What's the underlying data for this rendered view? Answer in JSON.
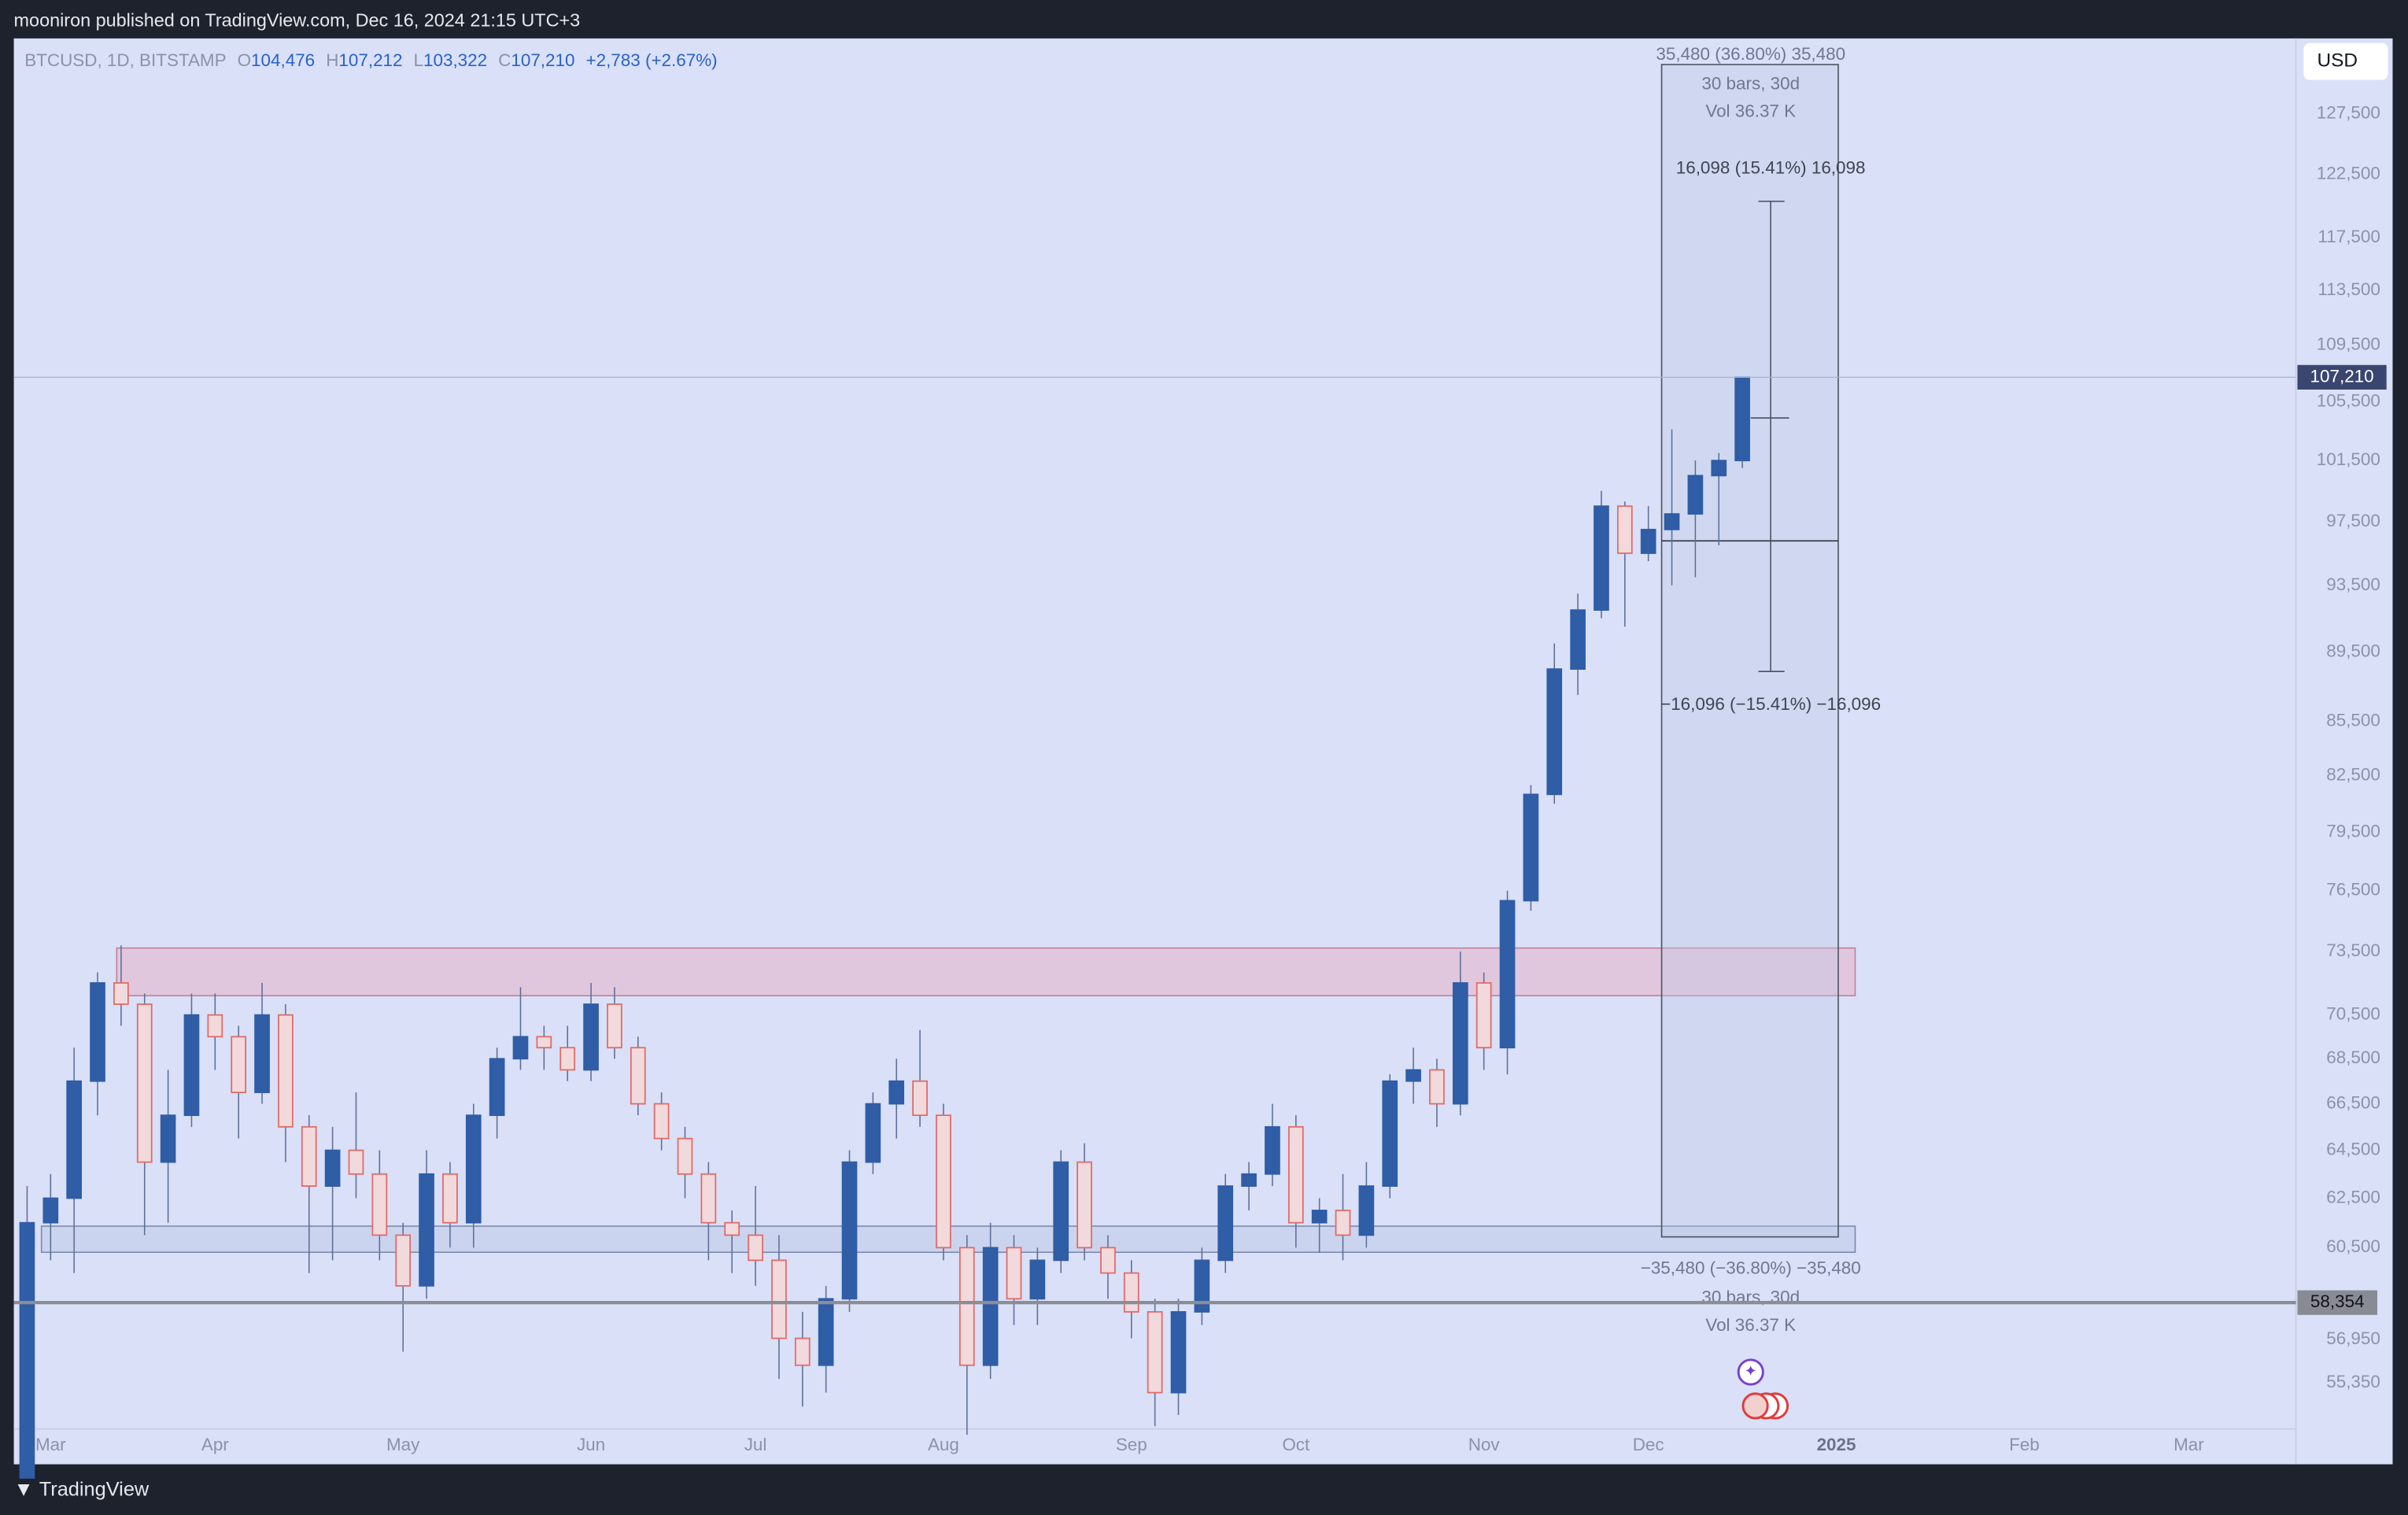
{
  "header": {
    "published": "mooniron published on TradingView.com, Dec 16, 2024 21:15 UTC+3"
  },
  "symbol_legend": {
    "symbol": "BTCUSD, 1D, BITSTAMP",
    "o_key": "O",
    "open": "104,476",
    "h_key": "H",
    "high": "107,212",
    "l_key": "L",
    "low": "103,322",
    "c_key": "C",
    "close": "107,210",
    "change": "+2,783 (+2.67%)"
  },
  "currency": "USD",
  "annotations": {
    "range_top": "35,480 (36.80%) 35,480",
    "bars_top": "30 bars, 30d",
    "vol_top": "Vol 36.37 K",
    "up_move": "16,098 (15.41%) 16,098",
    "down_move": "−16,096 (−15.41%) −16,096",
    "range_bottom": "−35,480 (−36.80%) −35,480",
    "bars_bottom": "30 bars, 30d",
    "vol_bottom": "Vol 36.37 K"
  },
  "footer": {
    "brand": "TradingView"
  },
  "chart_data": {
    "type": "candlestick",
    "log_scale": true,
    "up_color": "#2f5da6",
    "down_color": "#e06a66",
    "categories": [
      null,
      "Mar",
      null,
      null,
      null,
      null,
      null,
      null,
      "Apr",
      null,
      null,
      null,
      null,
      null,
      null,
      null,
      "May",
      null,
      null,
      null,
      null,
      null,
      null,
      null,
      "Jun",
      null,
      null,
      null,
      null,
      null,
      null,
      "Jul",
      null,
      null,
      null,
      null,
      null,
      null,
      null,
      "Aug",
      null,
      null,
      null,
      null,
      null,
      null,
      null,
      "Sep",
      null,
      null,
      null,
      null,
      null,
      null,
      "Oct",
      null,
      null,
      null,
      null,
      null,
      null,
      null,
      "Nov",
      null,
      null,
      null,
      null,
      null,
      null,
      "Dec",
      null,
      null,
      null,
      null,
      null,
      null,
      null,
      "2025",
      null,
      null,
      null,
      null,
      null,
      null,
      null,
      "Feb",
      null,
      null,
      null,
      null,
      null,
      null,
      "Mar",
      null,
      null,
      null,
      null
    ],
    "open": [
      52000,
      61500,
      62500,
      67500,
      72000,
      71000,
      64000,
      66000,
      70500,
      69500,
      67000,
      70500,
      65500,
      63000,
      64500,
      63500,
      61000,
      59000,
      63500,
      61500,
      66000,
      68500,
      69500,
      69000,
      68000,
      71000,
      69000,
      66500,
      65000,
      63500,
      61500,
      61000,
      60000,
      57000,
      56000,
      58500,
      64000,
      66500,
      67500,
      66000,
      60500,
      56000,
      60500,
      58500,
      60000,
      64000,
      60500,
      59500,
      58000,
      55000,
      58000,
      60000,
      63000,
      63500,
      65500,
      61500,
      62000,
      61000,
      63000,
      67500,
      68000,
      66500,
      72000,
      69000,
      76000,
      81500,
      88500,
      92000,
      98500,
      95500,
      97000,
      98000,
      100500,
      101500,
      null,
      null,
      null,
      null,
      null,
      null,
      null,
      null,
      null,
      null,
      null,
      null,
      null,
      null,
      null,
      null,
      null,
      null,
      null,
      null,
      null,
      null,
      null
    ],
    "high": [
      63000,
      63500,
      69000,
      72500,
      73800,
      71500,
      68000,
      71500,
      71500,
      70000,
      72000,
      71000,
      66000,
      65500,
      67000,
      64500,
      61500,
      64500,
      64000,
      66500,
      69000,
      71800,
      70000,
      70000,
      72000,
      71800,
      69500,
      67000,
      65500,
      64000,
      62000,
      63000,
      61000,
      58000,
      59000,
      64500,
      67000,
      68500,
      69800,
      66500,
      61000,
      61500,
      61000,
      60500,
      64500,
      64800,
      61000,
      60000,
      58500,
      58500,
      60500,
      63500,
      64000,
      66500,
      66000,
      62500,
      63500,
      64000,
      67800,
      69000,
      68500,
      73500,
      72500,
      76500,
      82000,
      90000,
      93000,
      99500,
      98800,
      98500,
      103600,
      101500,
      102000,
      107212,
      null,
      null,
      null,
      null,
      null,
      null,
      null,
      null,
      null,
      null,
      null,
      null,
      null,
      null,
      null,
      null,
      null,
      null,
      null,
      null,
      null,
      null,
      null
    ],
    "low": [
      52500,
      60000,
      59500,
      66000,
      70000,
      61000,
      61500,
      65500,
      68000,
      65000,
      66500,
      64000,
      59500,
      60000,
      62500,
      60000,
      56500,
      58500,
      60500,
      60500,
      65000,
      68000,
      68000,
      67500,
      67500,
      68500,
      66000,
      64500,
      62500,
      60000,
      59500,
      59000,
      55500,
      54500,
      55000,
      58000,
      63500,
      65000,
      65500,
      60000,
      53500,
      55500,
      57500,
      57500,
      59500,
      60000,
      58500,
      57000,
      53800,
      54200,
      57500,
      59500,
      62000,
      63000,
      60500,
      60300,
      60000,
      60500,
      62500,
      66500,
      65500,
      66000,
      68000,
      67800,
      75500,
      81000,
      87000,
      91500,
      91000,
      95000,
      93500,
      94000,
      96000,
      101000,
      null,
      null,
      null,
      null,
      null,
      null,
      null,
      null,
      null,
      null,
      null,
      null,
      null,
      null,
      null,
      null,
      null,
      null,
      null,
      null,
      null,
      null,
      null
    ],
    "close": [
      61500,
      62500,
      67500,
      72000,
      71000,
      64000,
      66000,
      70500,
      69500,
      67000,
      70500,
      65500,
      63000,
      64500,
      63500,
      61000,
      59000,
      63500,
      61500,
      66000,
      68500,
      69500,
      69000,
      68000,
      71000,
      69000,
      66500,
      65000,
      63500,
      61500,
      61000,
      60000,
      57000,
      56000,
      58500,
      64000,
      66500,
      67500,
      66000,
      60500,
      56000,
      60500,
      58500,
      60000,
      64000,
      60500,
      59500,
      58000,
      55000,
      58000,
      60000,
      63000,
      63500,
      65500,
      61500,
      62000,
      61000,
      63000,
      67500,
      68000,
      66500,
      72000,
      69000,
      76000,
      81500,
      88500,
      92000,
      98500,
      95500,
      97000,
      98000,
      100500,
      101500,
      107210,
      null,
      null,
      null,
      null,
      null,
      null,
      null,
      null,
      null,
      null,
      null,
      null,
      null,
      null,
      null,
      null,
      null,
      null,
      null,
      null,
      null,
      null,
      null
    ],
    "ylim": [
      52470,
      133960
    ],
    "yticks": [
      {
        "value": 127500,
        "label": "127,500"
      },
      {
        "value": 122500,
        "label": "122,500"
      },
      {
        "value": 117500,
        "label": "117,500"
      },
      {
        "value": 113500,
        "label": "113,500"
      },
      {
        "value": 109500,
        "label": "109,500"
      },
      {
        "value": 105500,
        "label": "105,500"
      },
      {
        "value": 101500,
        "label": "101,500"
      },
      {
        "value": 97500,
        "label": "97,500"
      },
      {
        "value": 93500,
        "label": "93,500"
      },
      {
        "value": 89500,
        "label": "89,500"
      },
      {
        "value": 85500,
        "label": "85,500"
      },
      {
        "value": 82500,
        "label": "82,500"
      },
      {
        "value": 79500,
        "label": "79,500"
      },
      {
        "value": 76500,
        "label": "76,500"
      },
      {
        "value": 73500,
        "label": "73,500"
      },
      {
        "value": 70500,
        "label": "70,500"
      },
      {
        "value": 68500,
        "label": "68,500"
      },
      {
        "value": 66500,
        "label": "66,500"
      },
      {
        "value": 64500,
        "label": "64,500"
      },
      {
        "value": 62500,
        "label": "62,500"
      },
      {
        "value": 60500,
        "label": "60,500"
      },
      {
        "value": 56950,
        "label": "56,950"
      },
      {
        "value": 55350,
        "label": "55,350"
      }
    ],
    "last_price": {
      "value": 107210,
      "label": "107,210"
    },
    "levels": [
      {
        "value": 58354,
        "label": "58,354"
      }
    ]
  }
}
